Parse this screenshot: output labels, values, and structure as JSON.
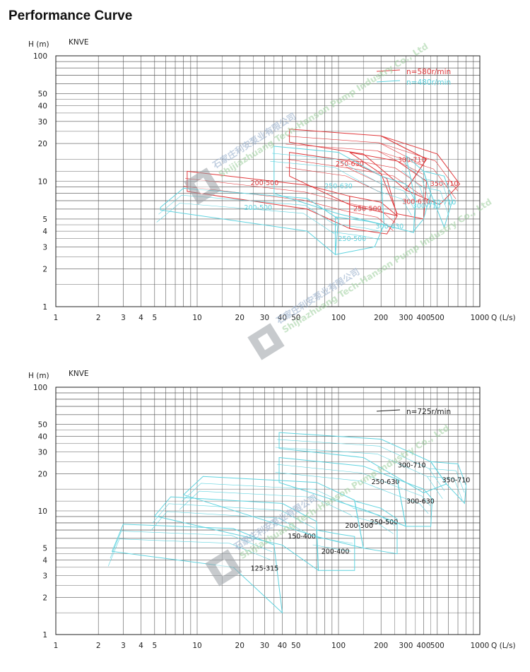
{
  "page": {
    "title": "Performance Curve"
  },
  "colors": {
    "red": "#e0393c",
    "cyan": "#5fd3df",
    "grid": "#555555",
    "black": "#222222"
  },
  "watermark": {
    "cn": "石家庄利安泵业有限公司",
    "en": "Shijiazhuang Tech-Hanson Pump Industry Co., Ltd"
  },
  "chart_data": [
    {
      "type": "line",
      "title": "KNVE",
      "ylabel": "H (m)",
      "xlabel": "Q (L/s)",
      "xscale": "log",
      "yscale": "log",
      "xlim": [
        1,
        1000
      ],
      "ylim": [
        1,
        100
      ],
      "x_tick_labels": [
        "1",
        "2",
        "3",
        "4",
        "5",
        "10",
        "20",
        "30",
        "40",
        "50",
        "100",
        "200",
        "300",
        "400",
        "500",
        "1000"
      ],
      "y_tick_labels": [
        "1",
        "2",
        "3",
        "4",
        "5",
        "10",
        "20",
        "30",
        "40",
        "50",
        "100"
      ],
      "legend": {
        "placement": "top-right",
        "entries": [
          {
            "label": "n=580r/min",
            "color": "red"
          },
          {
            "label": "n=480r/min",
            "color": "cyan"
          }
        ]
      },
      "series": [
        {
          "name": "200-500",
          "color": "red",
          "label_at": [
            30,
            9.3
          ],
          "polygon": [
            [
              8.5,
              12
            ],
            [
              60,
              9.3
            ],
            [
              120,
              7.6
            ],
            [
              120,
              4.2
            ],
            [
              60,
              6
            ],
            [
              8.5,
              8.3
            ]
          ]
        },
        {
          "name": "250-630",
          "color": "red",
          "label_at": [
            120,
            13.2
          ],
          "polygon": [
            [
              45,
              17
            ],
            [
              120,
              14.5
            ],
            [
              220,
              10.5
            ],
            [
              260,
              5.3
            ],
            [
              120,
              6.5
            ],
            [
              45,
              11
            ]
          ]
        },
        {
          "name": "250-500",
          "color": "red",
          "label_at": [
            160,
            5.8
          ],
          "polygon": [
            [
              120,
              7.6
            ],
            [
              200,
              6.8
            ],
            [
              260,
              5.3
            ],
            [
              220,
              3.8
            ],
            [
              120,
              4.2
            ]
          ]
        },
        {
          "name": "300-710",
          "color": "red",
          "label_at": [
            330,
            14.2
          ],
          "polygon": [
            [
              45,
              26
            ],
            [
              200,
              23
            ],
            [
              420,
              15
            ],
            [
              300,
              8.5
            ],
            [
              150,
              16.5
            ],
            [
              45,
              20.5
            ]
          ]
        },
        {
          "name": "300-630",
          "color": "red",
          "label_at": [
            355,
            6.6
          ],
          "polygon": [
            [
              120,
              17
            ],
            [
              260,
              14.5
            ],
            [
              420,
              10
            ],
            [
              400,
              5
            ],
            [
              260,
              5.5
            ],
            [
              200,
              11.5
            ]
          ]
        },
        {
          "name": "350-710",
          "color": "red",
          "label_at": [
            560,
            9.2
          ],
          "polygon": [
            [
              200,
              23
            ],
            [
              500,
              16.5
            ],
            [
              720,
              9.5
            ],
            [
              520,
              6.5
            ],
            [
              300,
              8.5
            ],
            [
              420,
              15
            ]
          ]
        },
        {
          "name": "200-500",
          "color": "cyan",
          "label_at": [
            27,
            5.9
          ],
          "polygon": [
            [
              5.5,
              6.2
            ],
            [
              8,
              8.8
            ],
            [
              60,
              7.3
            ],
            [
              100,
              5
            ],
            [
              95,
              2.6
            ],
            [
              60,
              4
            ],
            [
              5.5,
              5.9
            ]
          ]
        },
        {
          "name": "250-630",
          "color": "cyan",
          "label_at": [
            100,
            8.8
          ],
          "polygon": [
            [
              35,
              19
            ],
            [
              100,
              17
            ],
            [
              200,
              11
            ],
            [
              210,
              4.5
            ],
            [
              100,
              5.5
            ],
            [
              35,
              8
            ]
          ]
        },
        {
          "name": "250-500",
          "color": "cyan",
          "label_at": [
            125,
            3.35
          ],
          "polygon": [
            [
              95,
              5.2
            ],
            [
              160,
              4.8
            ],
            [
              210,
              4.5
            ],
            [
              180,
              3
            ],
            [
              95,
              2.6
            ]
          ]
        },
        {
          "name": "300-630",
          "color": "cyan",
          "label_at": [
            230,
            4.2
          ],
          "polygon": [
            [
              200,
              11
            ],
            [
              300,
              9.5
            ],
            [
              350,
              7
            ],
            [
              340,
              3.9
            ],
            [
              210,
              4.5
            ]
          ]
        },
        {
          "name": "300-710",
          "color": "cyan",
          "label_at": [
            420,
            6.1
          ],
          "polygon": [
            [
              300,
              16
            ],
            [
              400,
              12
            ],
            [
              450,
              8
            ],
            [
              400,
              5
            ],
            [
              340,
              4
            ],
            [
              350,
              7
            ]
          ]
        },
        {
          "name": "350-710",
          "color": "cyan",
          "label_at": [
            540,
            6.5
          ],
          "polygon": [
            [
              400,
              12
            ],
            [
              560,
              11
            ],
            [
              640,
              7
            ],
            [
              560,
              4.3
            ],
            [
              450,
              8
            ]
          ]
        }
      ]
    },
    {
      "type": "line",
      "title": "KNVE",
      "ylabel": "H (m)",
      "xlabel": "Q (L/s)",
      "xscale": "log",
      "yscale": "log",
      "xlim": [
        1,
        1000
      ],
      "ylim": [
        1,
        100
      ],
      "x_tick_labels": [
        "1",
        "2",
        "3",
        "4",
        "5",
        "10",
        "20",
        "30",
        "40",
        "50",
        "100",
        "200",
        "300",
        "400",
        "500",
        "1000"
      ],
      "y_tick_labels": [
        "1",
        "2",
        "3",
        "4",
        "5",
        "10",
        "20",
        "30",
        "40",
        "50",
        "100"
      ],
      "legend": {
        "placement": "top-right",
        "entries": [
          {
            "label": "n=725r/min",
            "color": "black"
          }
        ]
      },
      "series": [
        {
          "name": "125-315",
          "color": "cyan",
          "label_at": [
            30,
            3.3
          ],
          "polygon": [
            [
              2.5,
              4.7
            ],
            [
              3,
              7.8
            ],
            [
              18,
              7.2
            ],
            [
              35,
              5.3
            ],
            [
              40,
              1.5
            ],
            [
              18,
              3.5
            ],
            [
              2.5,
              4.7
            ]
          ]
        },
        {
          "name": "150-400",
          "color": "cyan",
          "label_at": [
            55,
            6
          ],
          "polygon": [
            [
              5,
              9.1
            ],
            [
              6.5,
              13
            ],
            [
              40,
              11.5
            ],
            [
              70,
              8.2
            ],
            [
              72,
              3.3
            ],
            [
              40,
              5.3
            ],
            [
              5,
              9.1
            ]
          ]
        },
        {
          "name": "200-400",
          "color": "cyan",
          "label_at": [
            95,
            4.5
          ],
          "polygon": [
            [
              70,
              7
            ],
            [
              100,
              6.5
            ],
            [
              130,
              6.2
            ],
            [
              130,
              3.3
            ],
            [
              72,
              3.3
            ]
          ]
        },
        {
          "name": "200-500",
          "color": "cyan",
          "label_at": [
            140,
            7.3
          ],
          "polygon": [
            [
              8,
              13.5
            ],
            [
              11,
              19
            ],
            [
              70,
              17
            ],
            [
              130,
              12.2
            ],
            [
              150,
              5
            ],
            [
              70,
              6.2
            ],
            [
              8,
              13.5
            ]
          ]
        },
        {
          "name": "250-500",
          "color": "cyan",
          "label_at": [
            210,
            7.8
          ],
          "polygon": [
            [
              130,
              12
            ],
            [
              200,
              10.5
            ],
            [
              260,
              8.6
            ],
            [
              260,
              4.5
            ],
            [
              150,
              5
            ]
          ]
        },
        {
          "name": "250-630",
          "color": "cyan",
          "label_at": [
            215,
            16.5
          ],
          "polygon": [
            [
              38,
              27
            ],
            [
              150,
              23
            ],
            [
              260,
              18
            ],
            [
              300,
              7.5
            ],
            [
              160,
              10
            ],
            [
              38,
              17
            ]
          ]
        },
        {
          "name": "300-630",
          "color": "cyan",
          "label_at": [
            380,
            11.5
          ],
          "polygon": [
            [
              260,
              18
            ],
            [
              400,
              15
            ],
            [
              460,
              12.5
            ],
            [
              450,
              7.5
            ],
            [
              300,
              7.5
            ]
          ]
        },
        {
          "name": "300-710",
          "color": "cyan",
          "label_at": [
            330,
            22.5
          ],
          "polygon": [
            [
              38,
              43
            ],
            [
              200,
              38
            ],
            [
              450,
              25
            ],
            [
              580,
              16.5
            ],
            [
              400,
              14
            ],
            [
              150,
              27
            ],
            [
              38,
              32
            ]
          ]
        },
        {
          "name": "350-710",
          "color": "cyan",
          "label_at": [
            680,
            17
          ],
          "polygon": [
            [
              450,
              25
            ],
            [
              700,
              24
            ],
            [
              800,
              16
            ],
            [
              780,
              11.5
            ],
            [
              580,
              16.5
            ]
          ]
        }
      ]
    }
  ]
}
